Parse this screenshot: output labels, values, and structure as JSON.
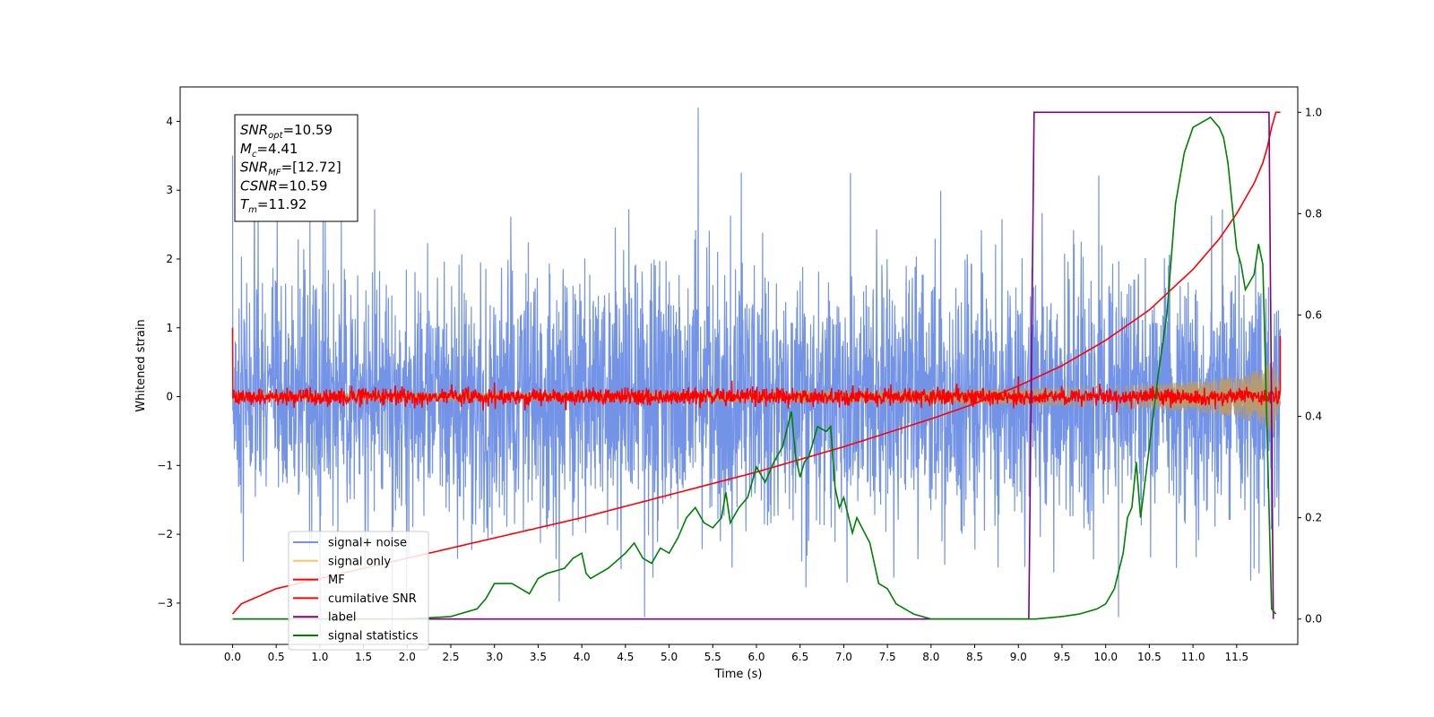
{
  "chart_data": {
    "type": "line",
    "title": "",
    "xlabel": "Time (s)",
    "ylabel": "Whitened strain",
    "xlim": [
      -0.6,
      12.2
    ],
    "ylim": [
      -3.6,
      4.5
    ],
    "y2lim": [
      -0.05,
      1.05
    ],
    "xticks": [
      "0.0",
      "0.5",
      "1.0",
      "1.5",
      "2.0",
      "2.5",
      "3.0",
      "3.5",
      "4.0",
      "4.5",
      "5.0",
      "5.5",
      "6.0",
      "6.5",
      "7.0",
      "7.5",
      "8.0",
      "8.5",
      "9.0",
      "9.5",
      "10.0",
      "10.5",
      "11.0",
      "11.5"
    ],
    "yticks": [
      "−3",
      "−2",
      "−1",
      "0",
      "1",
      "2",
      "3",
      "4"
    ],
    "y2ticks": [
      "0.0",
      "0.2",
      "0.4",
      "0.6",
      "0.8",
      "1.0"
    ],
    "grid": false,
    "legend_position": "lower-left",
    "annotation": {
      "lines": [
        {
          "var": "SNR",
          "sub": "opt",
          "value": "=10.59"
        },
        {
          "var": "M",
          "sub": "c",
          "value": "=4.41"
        },
        {
          "var": "SNR",
          "sub": "MF",
          "value": "=[12.72]"
        },
        {
          "var": "CSNR",
          "sub": "",
          "value": "=10.59"
        },
        {
          "var": "T",
          "sub": "m",
          "value": "=11.92"
        }
      ]
    },
    "series": [
      {
        "name": "signal+ noise",
        "color": "#7393e6",
        "axis": "left",
        "kind": "noise",
        "noise_sigma": 0.9,
        "duration": 12.0
      },
      {
        "name": "signal only",
        "color": "#ffc266",
        "axis": "left",
        "kind": "chirp",
        "envelope": {
          "x": [
            0,
            2,
            4,
            6,
            8,
            9,
            10,
            10.5,
            11,
            11.5,
            11.8,
            11.92,
            12.0
          ],
          "y": [
            0.06,
            0.065,
            0.07,
            0.08,
            0.1,
            0.12,
            0.15,
            0.18,
            0.22,
            0.3,
            0.4,
            0.55,
            0.1
          ]
        }
      },
      {
        "name": "MF",
        "color": "#ff0000",
        "axis": "left",
        "kind": "mf",
        "start_value": 1.0,
        "noise_sigma": 0.06,
        "end_value": 0.88
      },
      {
        "name": "cumilative SNR",
        "color": "#ff0000",
        "axis": "right",
        "x": [
          0,
          0.1,
          0.5,
          1,
          2,
          3,
          4,
          5,
          6,
          7,
          8,
          8.5,
          9,
          9.5,
          10,
          10.5,
          11,
          11.3,
          11.5,
          11.7,
          11.8,
          11.85,
          11.9,
          11.92,
          12.0
        ],
        "y": [
          0.01,
          0.03,
          0.06,
          0.08,
          0.12,
          0.16,
          0.2,
          0.245,
          0.29,
          0.34,
          0.395,
          0.425,
          0.46,
          0.5,
          0.55,
          0.61,
          0.69,
          0.75,
          0.8,
          0.86,
          0.9,
          0.93,
          0.97,
          1.0,
          1.0
        ]
      },
      {
        "name": "label",
        "color": "#800080",
        "axis": "right",
        "x": [
          0,
          9.12,
          9.18,
          11.87,
          11.92
        ],
        "y": [
          0.0,
          0.0,
          1.0,
          1.0,
          0.0
        ]
      },
      {
        "name": "signal statistics",
        "color": "#008000",
        "axis": "right",
        "x": [
          0,
          0.5,
          1,
          1.5,
          2,
          2.5,
          2.7,
          2.8,
          2.9,
          3.0,
          3.2,
          3.4,
          3.5,
          3.6,
          3.8,
          3.9,
          4.0,
          4.05,
          4.1,
          4.3,
          4.5,
          4.6,
          4.7,
          4.8,
          4.9,
          5.0,
          5.1,
          5.2,
          5.3,
          5.4,
          5.5,
          5.6,
          5.65,
          5.7,
          5.8,
          5.9,
          6.0,
          6.1,
          6.2,
          6.3,
          6.4,
          6.45,
          6.5,
          6.55,
          6.6,
          6.7,
          6.8,
          6.85,
          6.9,
          6.95,
          7.0,
          7.1,
          7.15,
          7.3,
          7.4,
          7.5,
          7.6,
          7.7,
          7.8,
          8.0,
          8.2,
          8.5,
          9.0,
          9.2,
          9.5,
          9.7,
          9.9,
          10.0,
          10.1,
          10.2,
          10.25,
          10.3,
          10.35,
          10.4,
          10.5,
          10.6,
          10.7,
          10.8,
          10.9,
          11.0,
          11.1,
          11.2,
          11.3,
          11.35,
          11.4,
          11.5,
          11.55,
          11.6,
          11.7,
          11.75,
          11.8,
          11.9,
          11.95
        ],
        "y": [
          0.0,
          0.0,
          0.0,
          0.0,
          0.0,
          0.005,
          0.015,
          0.02,
          0.04,
          0.07,
          0.07,
          0.05,
          0.08,
          0.09,
          0.1,
          0.12,
          0.13,
          0.09,
          0.08,
          0.1,
          0.13,
          0.15,
          0.12,
          0.11,
          0.14,
          0.13,
          0.16,
          0.2,
          0.22,
          0.19,
          0.18,
          0.2,
          0.25,
          0.19,
          0.22,
          0.24,
          0.3,
          0.27,
          0.31,
          0.34,
          0.41,
          0.32,
          0.28,
          0.31,
          0.32,
          0.38,
          0.37,
          0.38,
          0.26,
          0.22,
          0.24,
          0.17,
          0.2,
          0.15,
          0.07,
          0.06,
          0.03,
          0.02,
          0.01,
          0.0,
          0.0,
          0.0,
          0.0,
          0.0,
          0.005,
          0.01,
          0.02,
          0.03,
          0.06,
          0.13,
          0.2,
          0.22,
          0.31,
          0.2,
          0.34,
          0.48,
          0.6,
          0.82,
          0.92,
          0.97,
          0.98,
          0.99,
          0.97,
          0.95,
          0.9,
          0.73,
          0.7,
          0.65,
          0.68,
          0.74,
          0.7,
          0.02,
          0.01
        ]
      }
    ]
  }
}
